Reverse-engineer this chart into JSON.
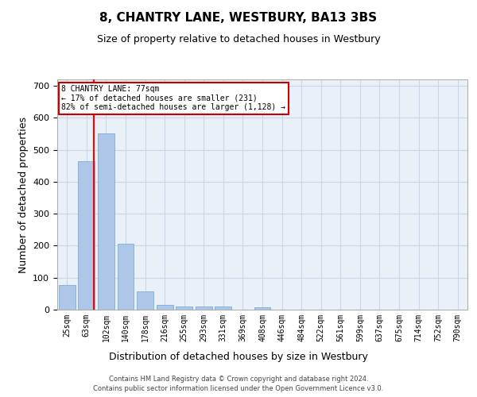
{
  "title": "8, CHANTRY LANE, WESTBURY, BA13 3BS",
  "subtitle": "Size of property relative to detached houses in Westbury",
  "xlabel": "Distribution of detached houses by size in Westbury",
  "ylabel": "Number of detached properties",
  "footer_line1": "Contains HM Land Registry data © Crown copyright and database right 2024.",
  "footer_line2": "Contains public sector information licensed under the Open Government Licence v3.0.",
  "categories": [
    "25sqm",
    "63sqm",
    "102sqm",
    "140sqm",
    "178sqm",
    "216sqm",
    "255sqm",
    "293sqm",
    "331sqm",
    "369sqm",
    "408sqm",
    "446sqm",
    "484sqm",
    "522sqm",
    "561sqm",
    "599sqm",
    "637sqm",
    "675sqm",
    "714sqm",
    "752sqm",
    "790sqm"
  ],
  "values": [
    78,
    465,
    550,
    205,
    57,
    15,
    10,
    10,
    10,
    0,
    8,
    0,
    0,
    0,
    0,
    0,
    0,
    0,
    0,
    0,
    0
  ],
  "bar_color": "#aec6e8",
  "bar_edge_color": "#7aaed0",
  "grid_color": "#c8d8e8",
  "bg_color": "#eaf0f8",
  "annotation_text": "8 CHANTRY LANE: 77sqm\n← 17% of detached houses are smaller (231)\n82% of semi-detached houses are larger (1,128) →",
  "annotation_box_color": "#cc0000",
  "ylim": [
    0,
    720
  ],
  "yticks": [
    0,
    100,
    200,
    300,
    400,
    500,
    600,
    700
  ],
  "title_fontsize": 11,
  "subtitle_fontsize": 9,
  "xlabel_fontsize": 9,
  "ylabel_fontsize": 9
}
